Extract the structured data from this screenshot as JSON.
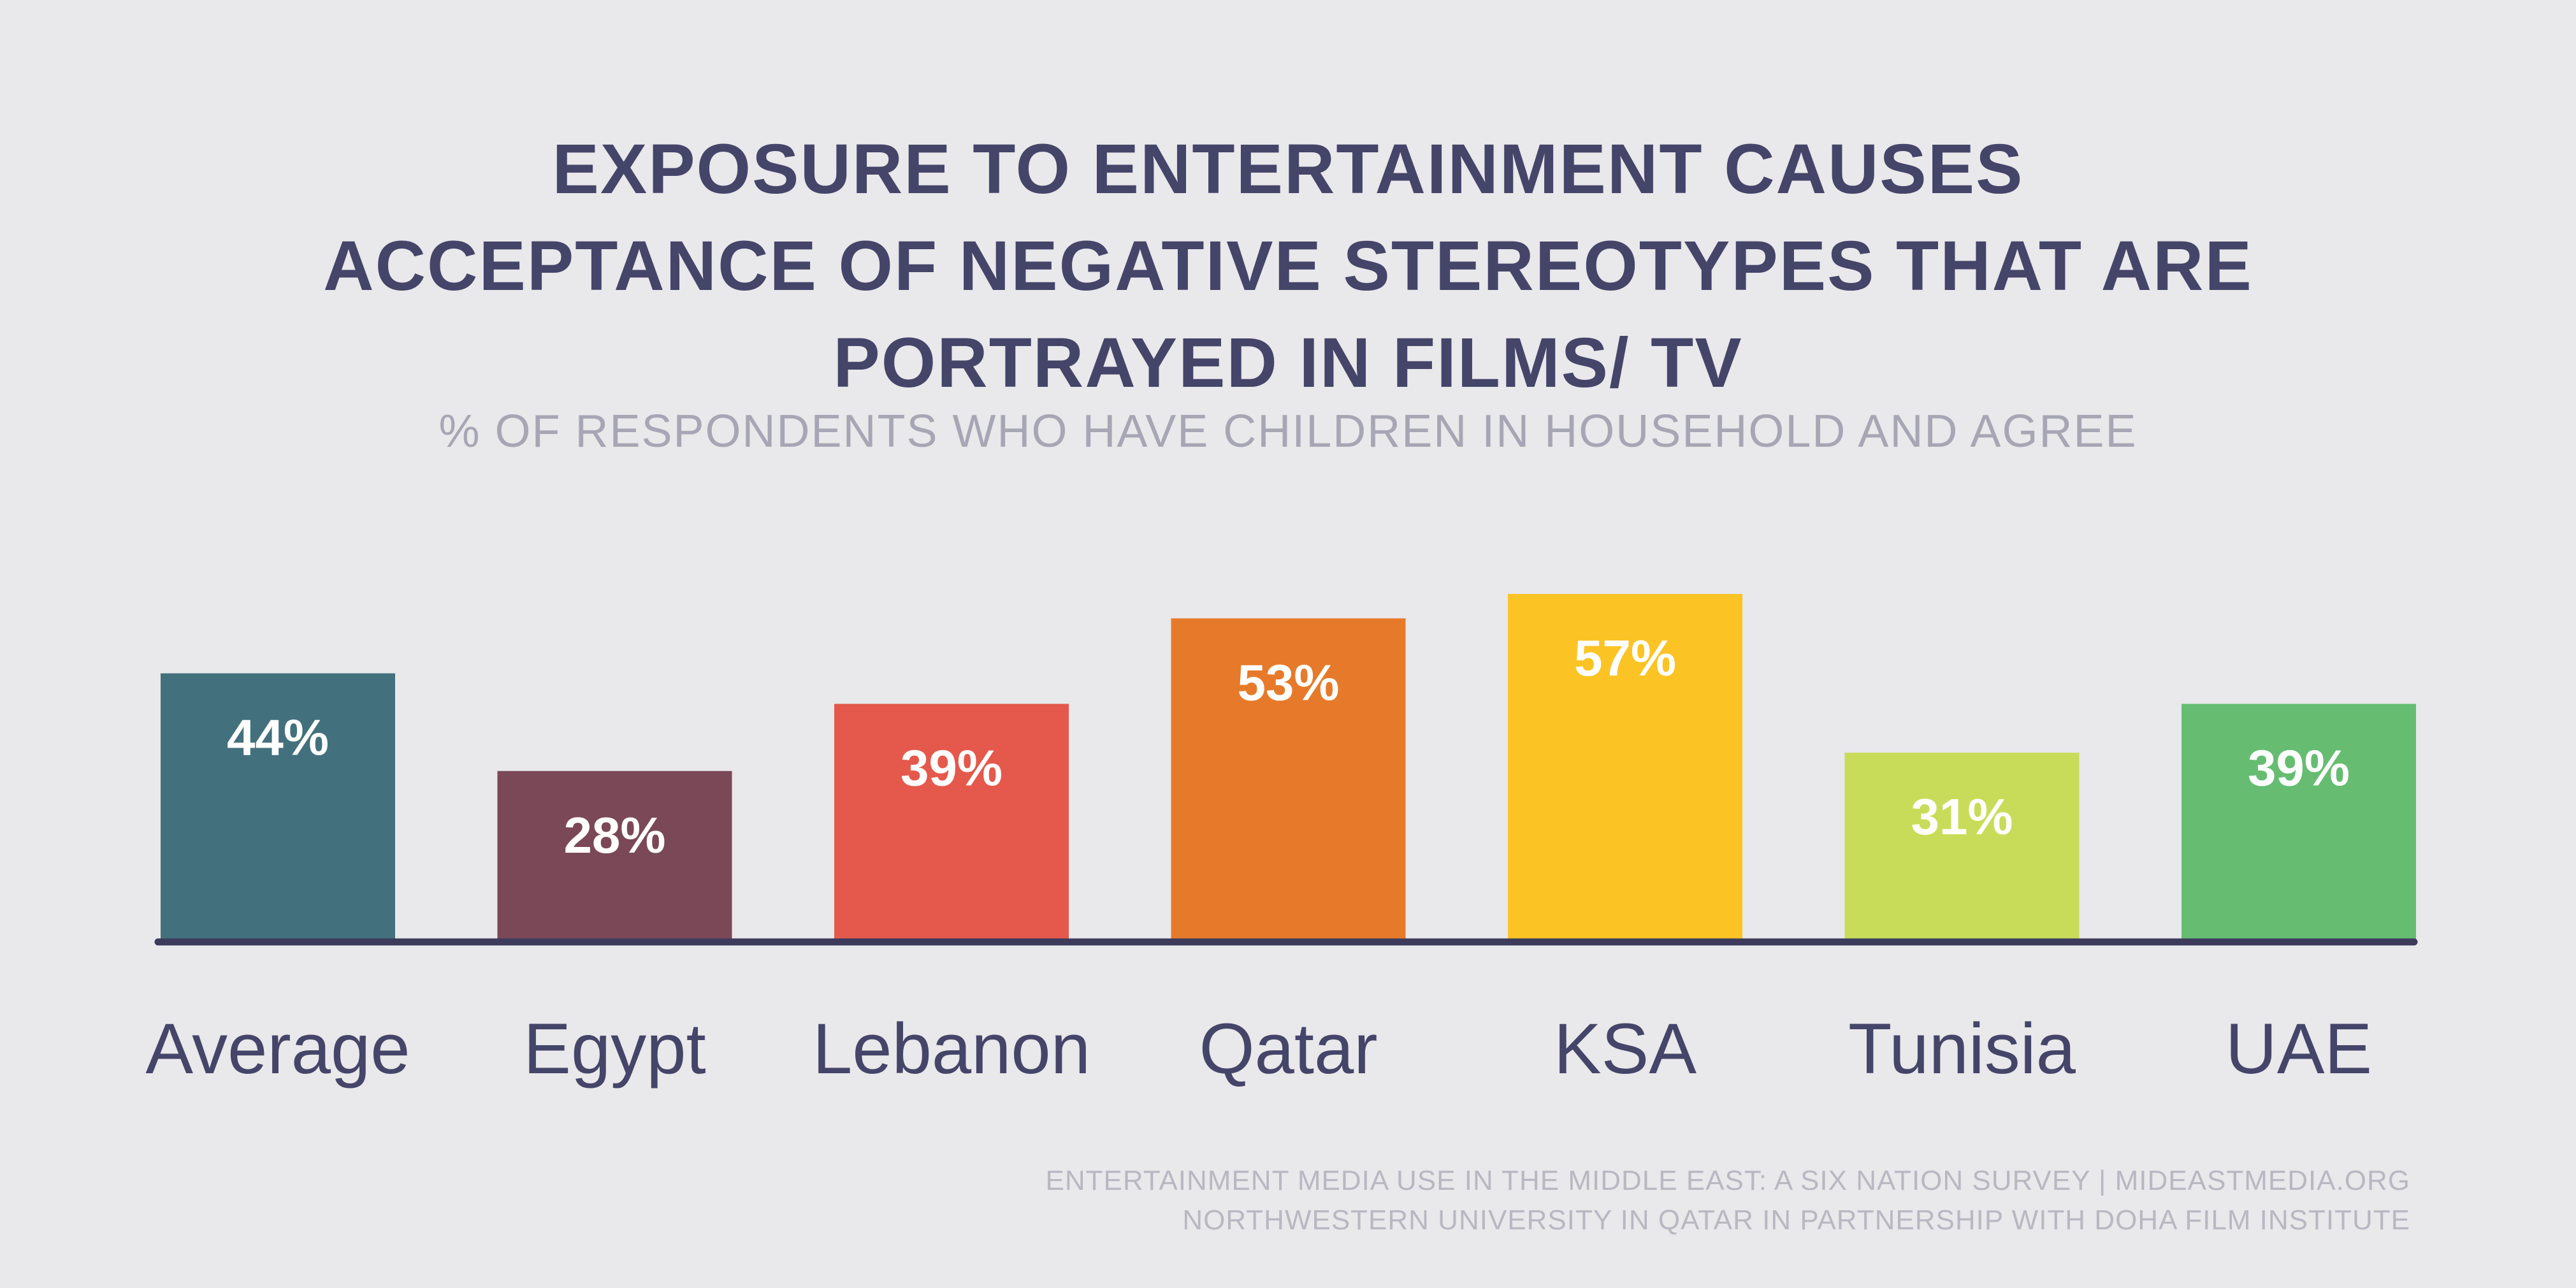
{
  "chart_data": {
    "type": "bar",
    "title_lines": [
      "EXPOSURE TO ENTERTAINMENT CAUSES",
      "ACCEPTANCE OF NEGATIVE STEREOTYPES THAT ARE",
      "PORTRAYED IN FILMS/ TV"
    ],
    "subtitle": "% OF RESPONDENTS WHO HAVE CHILDREN IN HOUSEHOLD AND AGREE",
    "categories": [
      "Average",
      "Egypt",
      "Lebanon",
      "Qatar",
      "KSA",
      "Tunisia",
      "UAE"
    ],
    "values": [
      44,
      28,
      39,
      53,
      57,
      31,
      39
    ],
    "value_labels": [
      "44%",
      "28%",
      "39%",
      "53%",
      "57%",
      "31%",
      "39%"
    ],
    "colors": [
      "#43707d",
      "#7b4857",
      "#e5584c",
      "#e67a2a",
      "#fcc324",
      "#c9dc5a",
      "#66bd72"
    ],
    "ylim": [
      0,
      57
    ],
    "grid": false,
    "baseline_color": "#3c3b5c"
  },
  "source_lines": [
    "ENTERTAINMENT MEDIA USE IN THE MIDDLE EAST: A SIX NATION SURVEY | MIDEASTMEDIA.ORG",
    "NORTHWESTERN UNIVERSITY IN QATAR IN PARTNERSHIP WITH DOHA FILM INSTITUTE"
  ]
}
